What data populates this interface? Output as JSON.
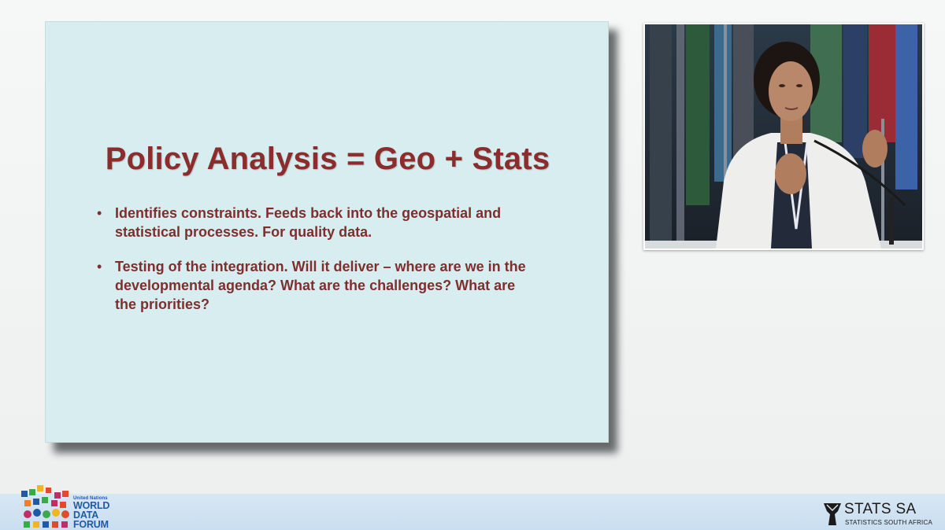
{
  "slide": {
    "title": "Policy Analysis = Geo + Stats",
    "bullets": [
      {
        "line1": "Identifies constraints. Feeds back into the geospatial and",
        "line2": "statistical processes. For quality data.",
        "line3": ""
      },
      {
        "line1": "Testing of the integration. Will it deliver – where are we in the",
        "line2": "developmental agenda? What are the challenges? What are",
        "line3": "the priorities?"
      }
    ],
    "bullet_symbol": "•",
    "background_color": "#d8edef",
    "text_color": "#8b2d2d"
  },
  "footer": {
    "wdf_logo": {
      "line1": "United Nations",
      "line2": "WORLD",
      "line3": "DATA",
      "line4": "FORUM"
    },
    "stats_logo": {
      "name": "STATS SA",
      "subtitle": "STATISTICS SOUTH AFRICA"
    },
    "brand_color": "#1f5aa6"
  },
  "video": {
    "icon": "speaker-video-feed"
  }
}
